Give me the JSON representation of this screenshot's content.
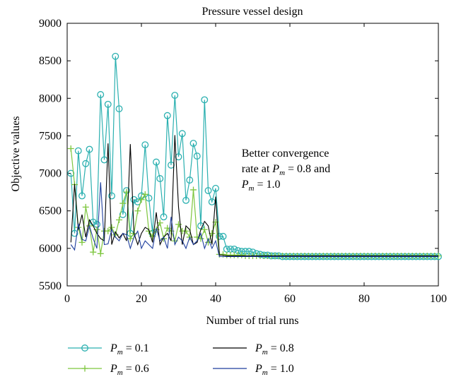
{
  "chart_data": {
    "type": "line",
    "title": "Pressure vessel design",
    "xlabel": "Number of trial runs",
    "ylabel": "Objective values",
    "xlim": [
      0,
      100
    ],
    "ylim": [
      5500,
      9000
    ],
    "x_ticks": [
      0,
      20,
      40,
      60,
      80,
      100
    ],
    "y_ticks": [
      5500,
      6000,
      6500,
      7000,
      7500,
      8000,
      8500,
      9000
    ],
    "grid": false,
    "legend_position": "below",
    "annotation": {
      "lines": [
        "Better convergence",
        "rate at P_m = 0.8 and",
        "P_m = 1.0"
      ],
      "x": 47,
      "y": 7220
    },
    "series": [
      {
        "name": "P_m = 0.1",
        "label_symbol": "P",
        "label_sub": "m",
        "label_value": " = 0.1",
        "color": "#2bb0b0",
        "marker": "circle",
        "x": [
          1,
          2,
          3,
          4,
          5,
          6,
          7,
          8,
          9,
          10,
          11,
          12,
          13,
          14,
          15,
          16,
          17,
          18,
          19,
          20,
          21,
          22,
          23,
          24,
          25,
          26,
          27,
          28,
          29,
          30,
          31,
          32,
          33,
          34,
          35,
          36,
          37,
          38,
          39,
          40,
          41,
          42,
          43,
          44,
          45,
          46,
          47,
          48,
          49,
          50,
          51,
          52,
          53,
          54,
          55,
          56,
          57,
          58,
          59,
          60,
          61,
          62,
          63,
          64,
          65,
          66,
          67,
          68,
          69,
          70,
          71,
          72,
          73,
          74,
          75,
          76,
          77,
          78,
          79,
          80,
          81,
          82,
          83,
          84,
          85,
          86,
          87,
          88,
          89,
          90,
          91,
          92,
          93,
          94,
          95,
          96,
          97,
          98,
          99,
          100
        ],
        "y": [
          7000,
          6200,
          7300,
          6700,
          7130,
          7320,
          6350,
          6320,
          8050,
          7180,
          7920,
          6700,
          8560,
          7860,
          6450,
          6770,
          6200,
          6650,
          6620,
          6700,
          7380,
          6670,
          6200,
          7150,
          6930,
          6420,
          7770,
          7110,
          8040,
          7220,
          7530,
          6640,
          6910,
          7400,
          7230,
          6300,
          7980,
          6770,
          6620,
          6800,
          6160,
          6160,
          5990,
          5990,
          5990,
          5970,
          5960,
          5960,
          5960,
          5950,
          5930,
          5920,
          5910,
          5910,
          5900,
          5900,
          5900,
          5890,
          5890,
          5890,
          5890,
          5890,
          5890,
          5890,
          5890,
          5890,
          5890,
          5890,
          5890,
          5890,
          5890,
          5890,
          5890,
          5890,
          5890,
          5890,
          5890,
          5890,
          5890,
          5890,
          5890,
          5890,
          5890,
          5890,
          5890,
          5890,
          5890,
          5890,
          5890,
          5890,
          5890,
          5890,
          5890,
          5890,
          5890,
          5890,
          5890,
          5890,
          5890,
          5890
        ]
      },
      {
        "name": "P_m = 0.6",
        "label_symbol": "P",
        "label_sub": "m",
        "label_value": " = 0.6",
        "color": "#7ec63f",
        "marker": "plus",
        "x": [
          1,
          2,
          3,
          4,
          5,
          6,
          7,
          8,
          9,
          10,
          11,
          12,
          13,
          14,
          15,
          16,
          17,
          18,
          19,
          20,
          21,
          22,
          23,
          24,
          25,
          26,
          27,
          28,
          29,
          30,
          31,
          32,
          33,
          34,
          35,
          36,
          37,
          38,
          39,
          40,
          41,
          42,
          43,
          44,
          45,
          46,
          47,
          48,
          49,
          50,
          51,
          52,
          53,
          54,
          55,
          56,
          57,
          58,
          59,
          60,
          61,
          62,
          63,
          64,
          65,
          66,
          67,
          68,
          69,
          70,
          71,
          72,
          73,
          74,
          75,
          76,
          77,
          78,
          79,
          80,
          81,
          82,
          83,
          84,
          85,
          86,
          87,
          88,
          89,
          90,
          91,
          92,
          93,
          94,
          95,
          96,
          97,
          98,
          99,
          100
        ],
        "y": [
          7330,
          6850,
          6280,
          6080,
          6550,
          6300,
          5950,
          6250,
          5930,
          6230,
          6230,
          6280,
          6180,
          6380,
          6600,
          6750,
          6130,
          6200,
          6500,
          6650,
          6720,
          6230,
          6160,
          6250,
          6340,
          6130,
          6270,
          6230,
          6100,
          6320,
          6230,
          6230,
          6150,
          6780,
          6150,
          6130,
          6250,
          6080,
          6200,
          6350,
          5920,
          5920,
          5910,
          5910,
          5910,
          5910,
          5910,
          5900,
          5900,
          5900,
          5900,
          5900,
          5900,
          5900,
          5900,
          5900,
          5900,
          5900,
          5900,
          5900,
          5900,
          5900,
          5900,
          5900,
          5900,
          5900,
          5900,
          5900,
          5900,
          5900,
          5900,
          5900,
          5900,
          5900,
          5900,
          5900,
          5900,
          5900,
          5900,
          5900,
          5900,
          5900,
          5900,
          5900,
          5900,
          5900,
          5900,
          5900,
          5900,
          5900,
          5900,
          5900,
          5900,
          5900,
          5900,
          5900,
          5900,
          5900,
          5900,
          5900
        ]
      },
      {
        "name": "P_m = 0.8",
        "label_symbol": "P",
        "label_sub": "m",
        "label_value": " = 0.8",
        "color": "#000000",
        "marker": "none",
        "x": [
          1,
          2,
          3,
          4,
          5,
          6,
          7,
          8,
          9,
          10,
          11,
          12,
          13,
          14,
          15,
          16,
          17,
          18,
          19,
          20,
          21,
          22,
          23,
          24,
          25,
          26,
          27,
          28,
          29,
          30,
          31,
          32,
          33,
          34,
          35,
          36,
          37,
          38,
          39,
          40,
          41,
          42,
          43,
          44,
          45,
          46,
          47,
          48,
          49,
          50,
          51,
          52,
          53,
          54,
          55,
          56,
          57,
          58,
          59,
          60,
          61,
          62,
          63,
          64,
          65,
          66,
          67,
          68,
          69,
          70,
          71,
          72,
          73,
          74,
          75,
          76,
          77,
          78,
          79,
          80,
          81,
          82,
          83,
          84,
          85,
          86,
          87,
          88,
          89,
          90,
          91,
          92,
          93,
          94,
          95,
          96,
          97,
          98,
          99,
          100
        ],
        "y": [
          6080,
          6860,
          6250,
          6450,
          6150,
          6380,
          6300,
          6200,
          6130,
          6100,
          7400,
          6050,
          6220,
          6140,
          6200,
          6100,
          7390,
          6200,
          6050,
          6200,
          6280,
          6250,
          6080,
          6480,
          6050,
          6150,
          6200,
          6100,
          7510,
          6550,
          6050,
          6300,
          6250,
          6050,
          6080,
          6250,
          6360,
          6300,
          6050,
          6690,
          5910,
          5910,
          5900,
          5900,
          5900,
          5900,
          5900,
          5900,
          5900,
          5900,
          5900,
          5900,
          5900,
          5900,
          5900,
          5900,
          5900,
          5900,
          5900,
          5900,
          5900,
          5900,
          5900,
          5900,
          5900,
          5900,
          5900,
          5900,
          5900,
          5900,
          5900,
          5900,
          5900,
          5900,
          5900,
          5900,
          5900,
          5900,
          5900,
          5900,
          5900,
          5900,
          5900,
          5900,
          5900,
          5900,
          5900,
          5900,
          5900,
          5900,
          5900,
          5900,
          5900,
          5900,
          5900,
          5900,
          5900,
          5900,
          5900,
          5900
        ]
      },
      {
        "name": "P_m = 1.0",
        "label_symbol": "P",
        "label_sub": "m",
        "label_value": " = 1.0",
        "color": "#1f3f9e",
        "marker": "none",
        "x": [
          1,
          2,
          3,
          4,
          5,
          6,
          7,
          8,
          9,
          10,
          11,
          12,
          13,
          14,
          15,
          16,
          17,
          18,
          19,
          20,
          21,
          22,
          23,
          24,
          25,
          26,
          27,
          28,
          29,
          30,
          31,
          32,
          33,
          34,
          35,
          36,
          37,
          38,
          39,
          40,
          41,
          42,
          43,
          44,
          45,
          46,
          47,
          48,
          49,
          50,
          51,
          52,
          53,
          54,
          55,
          56,
          57,
          58,
          59,
          60,
          61,
          62,
          63,
          64,
          65,
          66,
          67,
          68,
          69,
          70,
          71,
          72,
          73,
          74,
          75,
          76,
          77,
          78,
          79,
          80,
          81,
          82,
          83,
          84,
          85,
          86,
          87,
          88,
          89,
          90,
          91,
          92,
          93,
          94,
          95,
          96,
          97,
          98,
          99,
          100
        ],
        "y": [
          6050,
          5980,
          6330,
          6120,
          6100,
          6300,
          6130,
          6000,
          6880,
          6050,
          6060,
          6250,
          6150,
          6100,
          6200,
          6180,
          6000,
          6150,
          6230,
          6000,
          6100,
          6050,
          6000,
          6270,
          6100,
          6150,
          6000,
          6420,
          6050,
          6150,
          6100,
          6000,
          6150,
          6050,
          6100,
          6200,
          6000,
          6130,
          6000,
          6100,
          5890,
          5890,
          5890,
          5890,
          5890,
          5890,
          5890,
          5890,
          5890,
          5890,
          5890,
          5890,
          5890,
          5890,
          5890,
          5890,
          5890,
          5890,
          5890,
          5890,
          5890,
          5890,
          5890,
          5890,
          5890,
          5890,
          5890,
          5890,
          5890,
          5890,
          5890,
          5890,
          5890,
          5890,
          5890,
          5890,
          5890,
          5890,
          5890,
          5890,
          5890,
          5890,
          5890,
          5890,
          5890,
          5890,
          5890,
          5890,
          5890,
          5890,
          5890,
          5890,
          5890,
          5890,
          5890,
          5890,
          5890,
          5890,
          5890,
          5890
        ]
      }
    ]
  }
}
